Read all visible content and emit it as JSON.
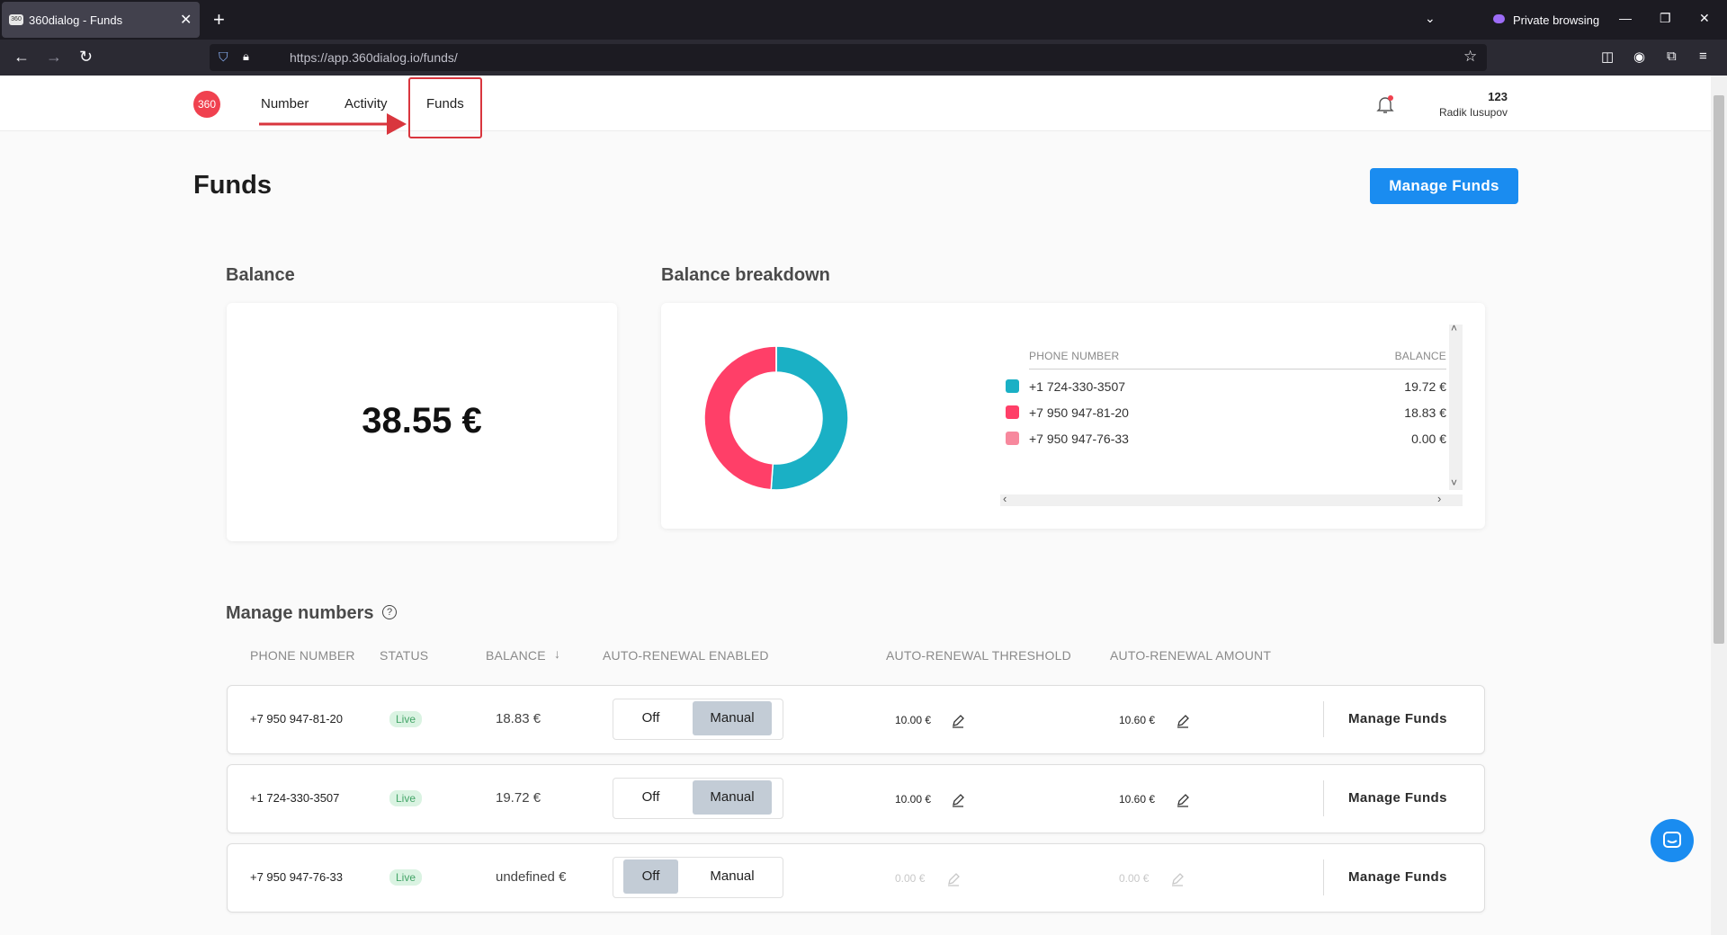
{
  "browser": {
    "tab_title": "360dialog - Funds",
    "private_label": "Private browsing",
    "url": "https://app.360dialog.io/funds/"
  },
  "nav": {
    "logo": "360",
    "items": [
      "Number",
      "Activity",
      "Funds"
    ],
    "user_id": "123",
    "user_name": "Radik Iusupov"
  },
  "page": {
    "title": "Funds",
    "action": "Manage Funds"
  },
  "balance": {
    "title": "Balance",
    "amount": "38.55 €"
  },
  "chart_data": {
    "type": "pie",
    "title": "Balance breakdown",
    "columns": [
      "PHONE NUMBER",
      "BALANCE"
    ],
    "categories": [
      "+1 724-330-3507",
      "+7 950 947-81-20",
      "+7 950 947-76-33"
    ],
    "values": [
      19.72,
      18.83,
      0
    ],
    "value_labels": [
      "19.72 €",
      "18.83 €",
      "0.00 €"
    ],
    "colors": [
      "#1ab0c5",
      "#ff3f68",
      "#f7889d"
    ]
  },
  "numbers": {
    "title": "Manage numbers",
    "columns": [
      "PHONE NUMBER",
      "STATUS",
      "BALANCE",
      "AUTO-RENEWAL ENABLED",
      "AUTO-RENEWAL THRESHOLD",
      "AUTO-RENEWAL AMOUNT"
    ],
    "renewal_options": [
      "Off",
      "Manual"
    ],
    "rows": [
      {
        "phone": "+7 950 947-81-20",
        "status": "Live",
        "balance": "18.83 €",
        "renewal_mode": 1,
        "threshold": "10.00 €",
        "amount": "10.60 €",
        "action": "Manage Funds"
      },
      {
        "phone": "+1 724-330-3507",
        "status": "Live",
        "balance": "19.72 €",
        "renewal_mode": 1,
        "threshold": "10.00 €",
        "amount": "10.60 €",
        "action": "Manage Funds"
      },
      {
        "phone": "+7 950 947-76-33",
        "status": "Live",
        "balance": "undefined €",
        "renewal_mode": 0,
        "threshold": "0.00 €",
        "amount": "0.00 €",
        "action": "Manage Funds"
      }
    ]
  }
}
